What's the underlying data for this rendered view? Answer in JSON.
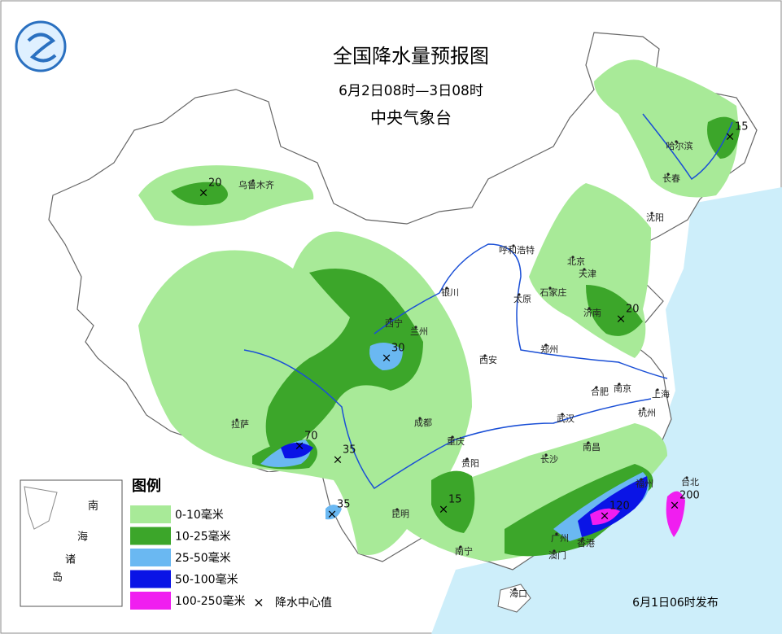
{
  "header": {
    "title": "全国降水量预报图",
    "period": "6月2日08时—3日08时",
    "issuer": "中央气象台"
  },
  "legend": {
    "title": "图例",
    "items": [
      {
        "label": "0-10毫米",
        "color": "#a8ea98"
      },
      {
        "label": "10-25毫米",
        "color": "#3ca62a"
      },
      {
        "label": "25-50毫米",
        "color": "#6ab8f2"
      },
      {
        "label": "50-100毫米",
        "color": "#0a14e6"
      },
      {
        "label": "100-250毫米",
        "color": "#f01ef0"
      }
    ],
    "center_label": "降水中心值"
  },
  "cities": [
    "乌鲁木齐",
    "哈尔滨",
    "长春",
    "沈阳",
    "呼和浩特",
    "北京",
    "天津",
    "石家庄",
    "银川",
    "太原",
    "济南",
    "西宁",
    "兰州",
    "郑州",
    "西安",
    "合肥",
    "南京",
    "上海",
    "拉萨",
    "成都",
    "武汉",
    "杭州",
    "重庆",
    "南昌",
    "长沙",
    "福州",
    "台北",
    "贵阳",
    "昆明",
    "南宁",
    "广州",
    "香港",
    "澳门",
    "海口"
  ],
  "centers": [
    20,
    15,
    20,
    30,
    70,
    35,
    35,
    15,
    120,
    200
  ],
  "inset": {
    "labels": [
      "南",
      "海",
      "诸",
      "岛"
    ]
  },
  "footer": "6月1日06时发布"
}
